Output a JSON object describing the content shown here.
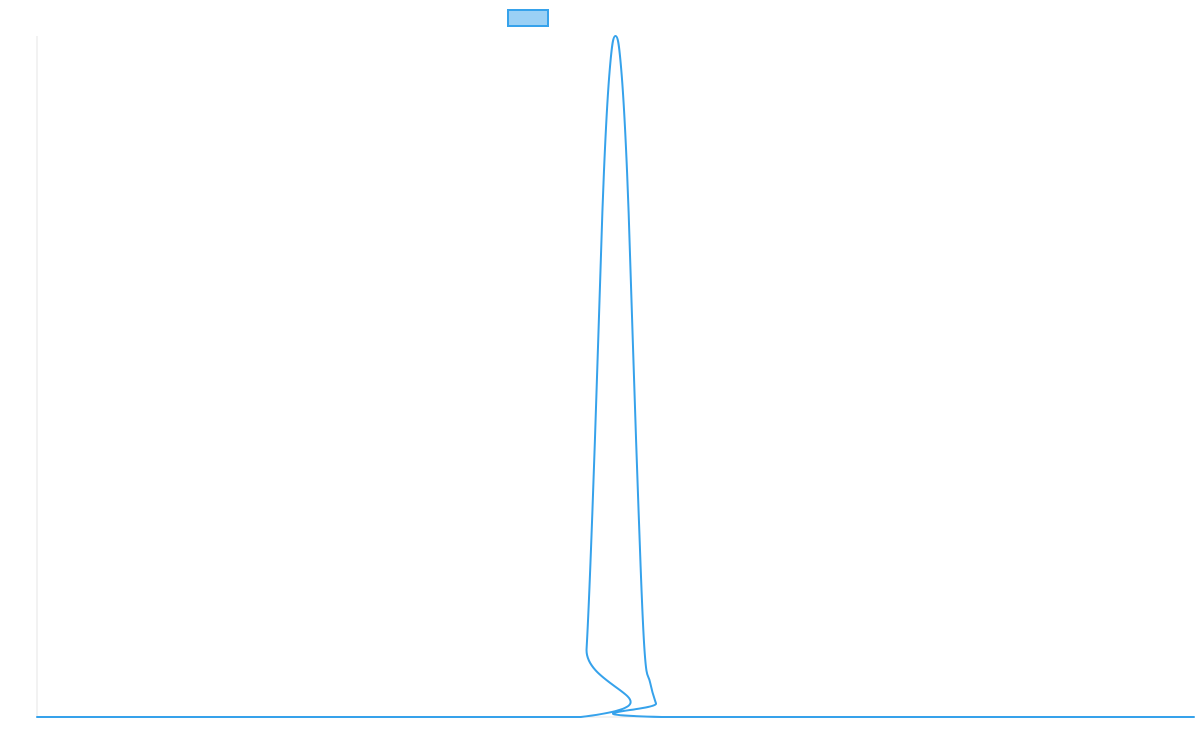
{
  "colors": {
    "series_stroke": "#36a2eb",
    "series_fill": "#9ad0f5",
    "axis": "#e6e6e6",
    "background": "#ffffff"
  },
  "chart_data": {
    "type": "line",
    "title": "",
    "xlabel": "",
    "ylabel": "",
    "grid": false,
    "legend_position": "top",
    "xlim": [
      0,
      100
    ],
    "ylim": [
      0,
      1
    ],
    "series": [
      {
        "name": "",
        "x": [
          0,
          47,
          47.5,
          48,
          48.5,
          49,
          49.5,
          50,
          50.5,
          51,
          51.5,
          52,
          52.5,
          53,
          53.5,
          54,
          100
        ],
        "y": [
          0,
          0,
          0.1,
          0.3,
          0.55,
          0.8,
          0.95,
          1.0,
          0.95,
          0.8,
          0.55,
          0.3,
          0.1,
          0.05,
          0.02,
          0,
          0
        ]
      }
    ]
  }
}
